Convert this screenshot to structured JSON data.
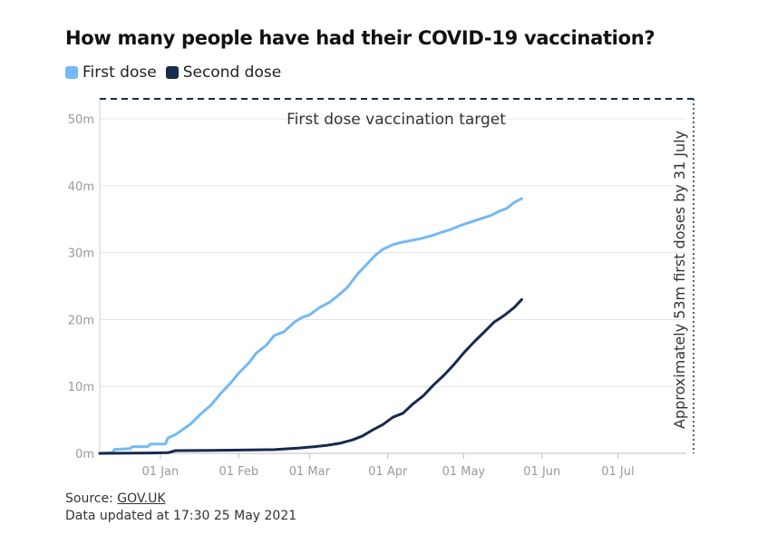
{
  "title": "How many people have had their COVID-19 vaccination?",
  "legend": {
    "first_label": "First dose",
    "second_label": "Second dose"
  },
  "colors": {
    "first": "#74b9f5",
    "second": "#172a4f",
    "target": "#172a4f",
    "axis_text": "#9a9a9a",
    "grid": "#e6e6e6"
  },
  "annotations": {
    "target_label": "First dose vaccination target",
    "deadline_label": "Approximately 53m first doses by 31 July"
  },
  "footer": {
    "source_prefix": "Source: ",
    "source_link": "GOV.UK",
    "updated": "Data updated at 17:30 25 May 2021"
  },
  "chart_data": {
    "type": "line",
    "x_axis": {
      "start": "2020-12-08",
      "end": "2021-07-31",
      "tick_dates": [
        "2021-01-01",
        "2021-02-01",
        "2021-03-01",
        "2021-04-01",
        "2021-05-01",
        "2021-06-01",
        "2021-07-01"
      ],
      "tick_labels": [
        "01 Jan",
        "01 Feb",
        "01 Mar",
        "01 Apr",
        "01 May",
        "01 Jun",
        "01 Jul"
      ]
    },
    "y_axis": {
      "ylim": [
        0,
        53
      ],
      "ticks": [
        0,
        10,
        20,
        30,
        40,
        50
      ],
      "tick_labels": [
        "0m",
        "10m",
        "20m",
        "30m",
        "40m",
        "50m"
      ],
      "unit": "million"
    },
    "grid": true,
    "legend_position": "top-left",
    "target": {
      "value": 53,
      "date": "2021-07-31"
    },
    "series": [
      {
        "name": "First dose",
        "color": "#74b9f5",
        "points": [
          [
            "2020-12-08",
            0.0
          ],
          [
            "2020-12-13",
            0.1
          ],
          [
            "2020-12-14",
            0.6
          ],
          [
            "2020-12-20",
            0.7
          ],
          [
            "2020-12-21",
            1.0
          ],
          [
            "2020-12-27",
            1.0
          ],
          [
            "2020-12-28",
            1.4
          ],
          [
            "2021-01-03",
            1.4
          ],
          [
            "2021-01-04",
            2.3
          ],
          [
            "2021-01-07",
            2.8
          ],
          [
            "2021-01-10",
            3.6
          ],
          [
            "2021-01-13",
            4.4
          ],
          [
            "2021-01-17",
            5.9
          ],
          [
            "2021-01-21",
            7.2
          ],
          [
            "2021-01-25",
            9.0
          ],
          [
            "2021-01-29",
            10.6
          ],
          [
            "2021-02-01",
            12.0
          ],
          [
            "2021-02-05",
            13.5
          ],
          [
            "2021-02-08",
            15.0
          ],
          [
            "2021-02-12",
            16.2
          ],
          [
            "2021-02-15",
            17.6
          ],
          [
            "2021-02-19",
            18.2
          ],
          [
            "2021-02-23",
            19.6
          ],
          [
            "2021-02-26",
            20.3
          ],
          [
            "2021-03-01",
            20.7
          ],
          [
            "2021-03-05",
            21.8
          ],
          [
            "2021-03-09",
            22.6
          ],
          [
            "2021-03-13",
            23.8
          ],
          [
            "2021-03-16",
            24.8
          ],
          [
            "2021-03-20",
            26.8
          ],
          [
            "2021-03-23",
            28.0
          ],
          [
            "2021-03-27",
            29.6
          ],
          [
            "2021-03-30",
            30.5
          ],
          [
            "2021-04-03",
            31.2
          ],
          [
            "2021-04-06",
            31.5
          ],
          [
            "2021-04-10",
            31.8
          ],
          [
            "2021-04-14",
            32.1
          ],
          [
            "2021-04-18",
            32.5
          ],
          [
            "2021-04-22",
            33.0
          ],
          [
            "2021-04-26",
            33.5
          ],
          [
            "2021-04-30",
            34.1
          ],
          [
            "2021-05-04",
            34.6
          ],
          [
            "2021-05-08",
            35.1
          ],
          [
            "2021-05-12",
            35.6
          ],
          [
            "2021-05-15",
            36.2
          ],
          [
            "2021-05-18",
            36.6
          ],
          [
            "2021-05-21",
            37.5
          ],
          [
            "2021-05-24",
            38.1
          ]
        ]
      },
      {
        "name": "Second dose",
        "color": "#172a4f",
        "points": [
          [
            "2020-12-08",
            0.0
          ],
          [
            "2020-12-28",
            0.05
          ],
          [
            "2021-01-04",
            0.1
          ],
          [
            "2021-01-07",
            0.4
          ],
          [
            "2021-01-20",
            0.45
          ],
          [
            "2021-02-05",
            0.5
          ],
          [
            "2021-02-15",
            0.55
          ],
          [
            "2021-02-25",
            0.8
          ],
          [
            "2021-03-03",
            1.0
          ],
          [
            "2021-03-08",
            1.2
          ],
          [
            "2021-03-13",
            1.5
          ],
          [
            "2021-03-18",
            2.0
          ],
          [
            "2021-03-22",
            2.6
          ],
          [
            "2021-03-26",
            3.5
          ],
          [
            "2021-03-30",
            4.3
          ],
          [
            "2021-04-03",
            5.4
          ],
          [
            "2021-04-07",
            6.0
          ],
          [
            "2021-04-11",
            7.4
          ],
          [
            "2021-04-15",
            8.6
          ],
          [
            "2021-04-19",
            10.2
          ],
          [
            "2021-04-23",
            11.6
          ],
          [
            "2021-04-27",
            13.2
          ],
          [
            "2021-05-01",
            15.0
          ],
          [
            "2021-05-05",
            16.6
          ],
          [
            "2021-05-09",
            18.1
          ],
          [
            "2021-05-13",
            19.6
          ],
          [
            "2021-05-17",
            20.6
          ],
          [
            "2021-05-21",
            21.8
          ],
          [
            "2021-05-24",
            23.0
          ]
        ]
      }
    ]
  }
}
